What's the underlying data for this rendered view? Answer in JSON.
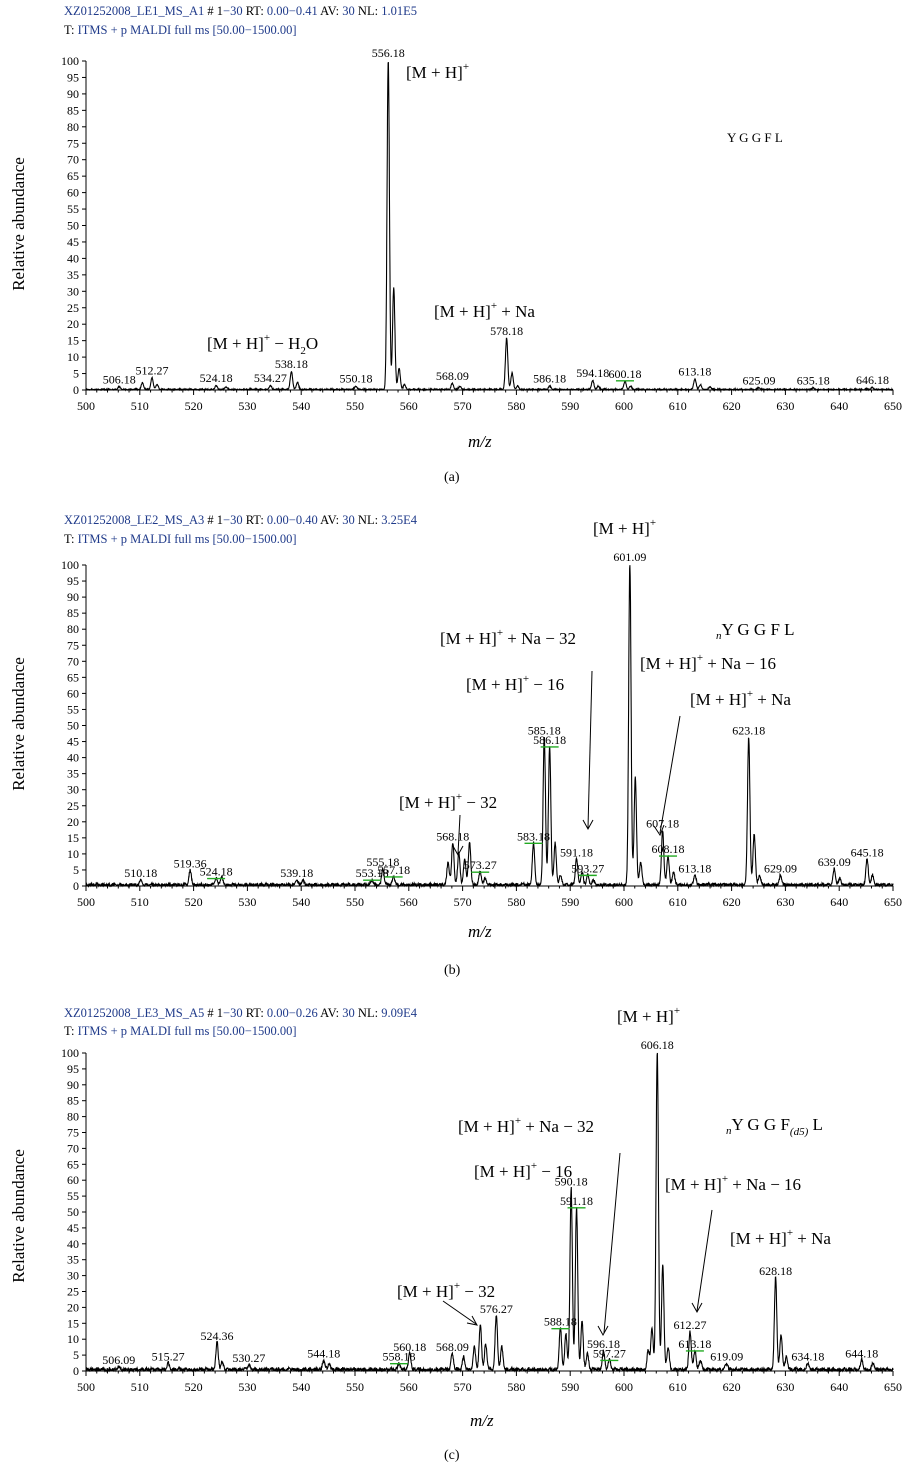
{
  "chart_data": [
    {
      "type": "line",
      "panel_label": "(a)",
      "header": {
        "file_id": "XZ01252008_LE1_MS_A1",
        "scan_label": "# 1",
        "scan_value": "−30",
        "rt_label": "RT:",
        "rt_value": "0.00−0.41",
        "av_label": "AV:",
        "av_value": "30",
        "nl_label": "NL:",
        "nl_value": "1.01E5",
        "filter_prefix": "T:",
        "filter_text": "ITMS + p MALDI full ms [50.00−1500.00]"
      },
      "ylabel": "Relative abundance",
      "xlabel": "m/z",
      "xlim": [
        500,
        650
      ],
      "ylim": [
        0,
        100
      ],
      "x_ticks": [
        500,
        510,
        520,
        530,
        540,
        550,
        560,
        570,
        580,
        590,
        600,
        610,
        620,
        630,
        640,
        650
      ],
      "y_ticks": [
        0,
        5,
        10,
        15,
        20,
        25,
        30,
        35,
        40,
        45,
        50,
        55,
        60,
        65,
        70,
        75,
        80,
        85,
        90,
        95,
        100
      ],
      "noise": 0.4,
      "peaks": [
        [
          506.18,
          0.8
        ],
        [
          510.5,
          2
        ],
        [
          512.27,
          3.5
        ],
        [
          513.2,
          1.5
        ],
        [
          524.18,
          1.2
        ],
        [
          526,
          0.8
        ],
        [
          534.27,
          1.2
        ],
        [
          538.18,
          5.5
        ],
        [
          539.3,
          2.2
        ],
        [
          550.18,
          1
        ],
        [
          556.18,
          100
        ],
        [
          557.2,
          31
        ],
        [
          558.2,
          6.5
        ],
        [
          559.2,
          1.5
        ],
        [
          568.09,
          1.8
        ],
        [
          569.5,
          1
        ],
        [
          578.18,
          15.5
        ],
        [
          579.2,
          5
        ],
        [
          580.2,
          1
        ],
        [
          586.18,
          1
        ],
        [
          594.18,
          2.8
        ],
        [
          595.2,
          1
        ],
        [
          600.18,
          2.5
        ],
        [
          601.2,
          1
        ],
        [
          613.18,
          3.2
        ],
        [
          614.2,
          1.5
        ],
        [
          616,
          0.8
        ],
        [
          625.09,
          0.5
        ],
        [
          635.18,
          0.5
        ],
        [
          646.18,
          0.6
        ]
      ],
      "peak_labels": [
        {
          "x": 506.18,
          "text": "506.18",
          "underline": false
        },
        {
          "x": 512.27,
          "text": "512.27",
          "underline": false
        },
        {
          "x": 524.18,
          "text": "524.18",
          "underline": false
        },
        {
          "x": 534.27,
          "text": "534.27",
          "underline": false
        },
        {
          "x": 538.18,
          "text": "538.18",
          "underline": false
        },
        {
          "x": 550.18,
          "text": "550.18",
          "underline": false
        },
        {
          "x": 556.18,
          "text": "556.18",
          "underline": false
        },
        {
          "x": 568.09,
          "text": "568.09",
          "underline": false
        },
        {
          "x": 578.18,
          "text": "578.18",
          "underline": false
        },
        {
          "x": 586.18,
          "text": "586.18",
          "underline": false
        },
        {
          "x": 594.18,
          "text": "594.18",
          "underline": false
        },
        {
          "x": 600.18,
          "text": "600.18",
          "underline": true
        },
        {
          "x": 613.18,
          "text": "613.18",
          "underline": false
        },
        {
          "x": 625.09,
          "text": "625.09",
          "underline": false
        },
        {
          "x": 635.18,
          "text": "635.18",
          "underline": false
        },
        {
          "x": 646.18,
          "text": "646.18",
          "underline": false
        }
      ],
      "annotations": [
        {
          "main": "[M + H]",
          "sup": "+",
          "tail": ""
        },
        {
          "main": "[M + H]",
          "sup": "+",
          "tail": " + Na"
        },
        {
          "main": "[M + H]",
          "sup": "+",
          "tail": " − H",
          "sub": "2",
          "tail2": "O"
        }
      ],
      "sequence": {
        "pre": "",
        "text": "Y G G F L",
        "sub": "",
        "post": ""
      }
    },
    {
      "type": "line",
      "panel_label": "(b)",
      "header": {
        "file_id": "XZ01252008_LE2_MS_A3",
        "scan_label": "# 1",
        "scan_value": "−30",
        "rt_label": "RT:",
        "rt_value": "0.00−0.40",
        "av_label": "AV:",
        "av_value": "30",
        "nl_label": "NL:",
        "nl_value": "3.25E4",
        "filter_prefix": "T:",
        "filter_text": "ITMS + p MALDI full ms [50.00−1500.00]"
      },
      "ylabel": "Relative abundance",
      "xlabel": "m/z",
      "xlim": [
        500,
        650
      ],
      "ylim": [
        0,
        100
      ],
      "x_ticks": [
        500,
        510,
        520,
        530,
        540,
        550,
        560,
        570,
        580,
        590,
        600,
        610,
        620,
        630,
        640,
        650
      ],
      "y_ticks": [
        0,
        5,
        10,
        15,
        20,
        25,
        30,
        35,
        40,
        45,
        50,
        55,
        60,
        65,
        70,
        75,
        80,
        85,
        90,
        95,
        100
      ],
      "noise": 1.0,
      "peaks": [
        [
          510.18,
          1.5
        ],
        [
          519.36,
          4.5
        ],
        [
          524.18,
          2
        ],
        [
          525.2,
          2.5
        ],
        [
          539.18,
          1.5
        ],
        [
          540.3,
          1.5
        ],
        [
          553.18,
          1.5
        ],
        [
          555.18,
          5
        ],
        [
          557.18,
          2.5
        ],
        [
          567.3,
          7
        ],
        [
          568.18,
          13
        ],
        [
          569.3,
          10
        ],
        [
          570.4,
          8
        ],
        [
          571.3,
          13.5
        ],
        [
          573.27,
          4
        ],
        [
          574.2,
          2
        ],
        [
          583.18,
          13
        ],
        [
          585.18,
          46
        ],
        [
          586.18,
          43
        ],
        [
          587.2,
          13
        ],
        [
          588.2,
          3
        ],
        [
          591.18,
          8
        ],
        [
          592.2,
          4
        ],
        [
          593.27,
          3
        ],
        [
          594.3,
          1.5
        ],
        [
          601.09,
          100
        ],
        [
          602.1,
          33.5
        ],
        [
          603.1,
          7
        ],
        [
          607.18,
          17
        ],
        [
          608.18,
          9
        ],
        [
          609.2,
          4
        ],
        [
          613.18,
          3
        ],
        [
          623.18,
          46
        ],
        [
          624.2,
          16
        ],
        [
          625.2,
          3
        ],
        [
          629.09,
          3
        ],
        [
          639.09,
          5
        ],
        [
          640.1,
          2
        ],
        [
          645.18,
          8
        ],
        [
          646.2,
          3
        ]
      ],
      "peak_labels": [
        {
          "x": 510.18,
          "text": "510.18",
          "underline": false
        },
        {
          "x": 519.36,
          "text": "519.36",
          "underline": false
        },
        {
          "x": 524.18,
          "text": "524.18",
          "underline": true
        },
        {
          "x": 539.18,
          "text": "539.18",
          "underline": false
        },
        {
          "x": 553.18,
          "text": "553.18",
          "underline": true
        },
        {
          "x": 555.18,
          "text": "555.18",
          "underline": false
        },
        {
          "x": 557.18,
          "text": "557.18",
          "underline": true
        },
        {
          "x": 568.18,
          "text": "568.18",
          "underline": false
        },
        {
          "x": 573.27,
          "text": "573.27",
          "underline": true
        },
        {
          "x": 583.18,
          "text": "583.18",
          "underline": true
        },
        {
          "x": 585.18,
          "text": "585.18",
          "underline": false
        },
        {
          "x": 586.18,
          "text": "586.18",
          "underline": true
        },
        {
          "x": 591.18,
          "text": "591.18",
          "underline": false
        },
        {
          "x": 593.27,
          "text": "593.27",
          "underline": true
        },
        {
          "x": 601.09,
          "text": "601.09",
          "underline": false
        },
        {
          "x": 607.18,
          "text": "607.18",
          "underline": false
        },
        {
          "x": 608.18,
          "text": "608.18",
          "underline": true
        },
        {
          "x": 613.18,
          "text": "613.18",
          "underline": false
        },
        {
          "x": 623.18,
          "text": "623.18",
          "underline": false
        },
        {
          "x": 629.09,
          "text": "629.09",
          "underline": false
        },
        {
          "x": 639.09,
          "text": "639.09",
          "underline": false
        },
        {
          "x": 645.18,
          "text": "645.18",
          "underline": false
        }
      ],
      "annotations": [
        {
          "main": "[M + H]",
          "sup": "+",
          "tail": ""
        },
        {
          "main": "[M + H]",
          "sup": "+",
          "tail": " + Na − 32"
        },
        {
          "main": "[M + H]",
          "sup": "+",
          "tail": " − 16"
        },
        {
          "main": "[M + H]",
          "sup": "+",
          "tail": " + Na − 16"
        },
        {
          "main": "[M + H]",
          "sup": "+",
          "tail": " + Na"
        },
        {
          "main": "[M + H]",
          "sup": "+",
          "tail": " − 32"
        }
      ],
      "sequence": {
        "pre": "n",
        "text": "Y G G F L",
        "sub": "",
        "post": ""
      }
    },
    {
      "type": "line",
      "panel_label": "(c)",
      "header": {
        "file_id": "XZ01252008_LE3_MS_A5",
        "scan_label": "# 1",
        "scan_value": "−30",
        "rt_label": "RT:",
        "rt_value": "0.00−0.26",
        "av_label": "AV:",
        "av_value": "30",
        "nl_label": "NL:",
        "nl_value": "9.09E4",
        "filter_prefix": "T:",
        "filter_text": "ITMS + p MALDI full ms [50.00−1500.00]"
      },
      "ylabel": "Relative abundance",
      "xlabel": "m/z",
      "xlim": [
        500,
        650
      ],
      "ylim": [
        0,
        100
      ],
      "x_ticks": [
        500,
        510,
        520,
        530,
        540,
        550,
        560,
        570,
        580,
        590,
        600,
        610,
        620,
        630,
        640,
        650
      ],
      "y_ticks": [
        0,
        5,
        10,
        15,
        20,
        25,
        30,
        35,
        40,
        45,
        50,
        55,
        60,
        65,
        70,
        75,
        80,
        85,
        90,
        95,
        100
      ],
      "noise": 1.2,
      "peaks": [
        [
          506.09,
          1
        ],
        [
          515.27,
          2
        ],
        [
          524.36,
          8.5
        ],
        [
          525.3,
          2.5
        ],
        [
          530.27,
          1.5
        ],
        [
          544.18,
          3
        ],
        [
          545.2,
          2
        ],
        [
          558.18,
          2
        ],
        [
          560.18,
          5
        ],
        [
          568.09,
          5
        ],
        [
          570.2,
          4
        ],
        [
          572.2,
          7
        ],
        [
          573.3,
          14
        ],
        [
          574.3,
          8
        ],
        [
          576.27,
          17
        ],
        [
          577.3,
          7
        ],
        [
          588.18,
          13
        ],
        [
          589.2,
          11
        ],
        [
          590.18,
          57
        ],
        [
          591.18,
          51
        ],
        [
          592.2,
          15
        ],
        [
          593.2,
          5
        ],
        [
          596.18,
          6
        ],
        [
          597.27,
          3
        ],
        [
          604.5,
          6
        ],
        [
          605.2,
          13
        ],
        [
          606.18,
          100
        ],
        [
          607.2,
          33
        ],
        [
          608.2,
          7
        ],
        [
          612.27,
          12
        ],
        [
          613.18,
          6
        ],
        [
          614.2,
          3
        ],
        [
          619.09,
          2
        ],
        [
          628.18,
          29
        ],
        [
          629.2,
          11
        ],
        [
          630.2,
          4
        ],
        [
          634.18,
          2
        ],
        [
          644.18,
          3
        ],
        [
          646.3,
          2
        ]
      ],
      "peak_labels": [
        {
          "x": 506.09,
          "text": "506.09",
          "underline": false
        },
        {
          "x": 515.27,
          "text": "515.27",
          "underline": false
        },
        {
          "x": 524.36,
          "text": "524.36",
          "underline": false
        },
        {
          "x": 530.27,
          "text": "530.27",
          "underline": false
        },
        {
          "x": 544.18,
          "text": "544.18",
          "underline": false
        },
        {
          "x": 558.18,
          "text": "558.18",
          "underline": true
        },
        {
          "x": 560.18,
          "text": "560.18",
          "underline": false
        },
        {
          "x": 568.09,
          "text": "568.09",
          "underline": false
        },
        {
          "x": 576.27,
          "text": "576.27",
          "underline": false
        },
        {
          "x": 588.18,
          "text": "588.18",
          "underline": true
        },
        {
          "x": 590.18,
          "text": "590.18",
          "underline": false
        },
        {
          "x": 591.18,
          "text": "591.18",
          "underline": true
        },
        {
          "x": 596.18,
          "text": "596.18",
          "underline": false
        },
        {
          "x": 597.27,
          "text": "597.27",
          "underline": true
        },
        {
          "x": 606.18,
          "text": "606.18",
          "underline": false
        },
        {
          "x": 612.27,
          "text": "612.27",
          "underline": false
        },
        {
          "x": 613.18,
          "text": "613.18",
          "underline": true
        },
        {
          "x": 619.09,
          "text": "619.09",
          "underline": false
        },
        {
          "x": 628.18,
          "text": "628.18",
          "underline": false
        },
        {
          "x": 634.18,
          "text": "634.18",
          "underline": false
        },
        {
          "x": 644.18,
          "text": "644.18",
          "underline": false
        }
      ],
      "annotations": [
        {
          "main": "[M + H]",
          "sup": "+",
          "tail": ""
        },
        {
          "main": "[M + H]",
          "sup": "+",
          "tail": " + Na − 32"
        },
        {
          "main": "[M + H]",
          "sup": "+",
          "tail": " − 16"
        },
        {
          "main": "[M + H]",
          "sup": "+",
          "tail": " + Na − 16"
        },
        {
          "main": "[M + H]",
          "sup": "+",
          "tail": " + Na"
        },
        {
          "main": "[M + H]",
          "sup": "+",
          "tail": " − 32"
        }
      ],
      "sequence": {
        "pre": "n",
        "text": "Y G G F",
        "sub": "(d5)",
        "post": " L"
      }
    }
  ]
}
